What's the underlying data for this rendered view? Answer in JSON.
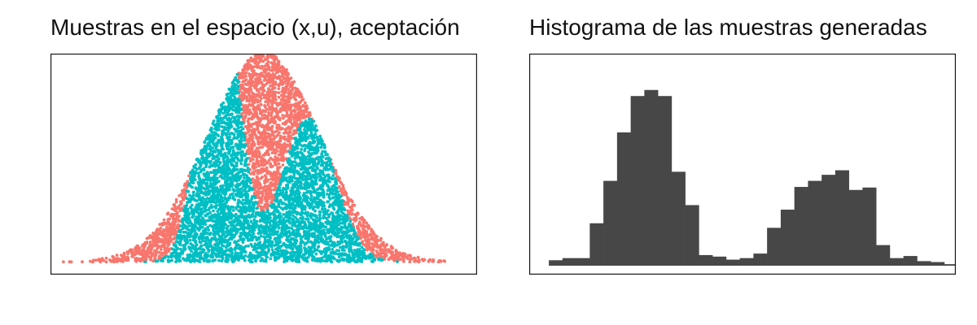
{
  "chart_data": [
    {
      "type": "scatter",
      "title": "Muestras en el espacio (x,u), aceptación",
      "xlabel": "",
      "ylabel": "",
      "axes_visible": false,
      "grid": false,
      "legend": "none",
      "xlim": [
        -4.7,
        6.7
      ],
      "ylim": [
        -0.02,
        0.33
      ],
      "series": [
        {
          "color": "#F8766D",
          "envelope": "1.25 * Normal(1.0, 1.5)",
          "points_description": "(x, u) pairs with u uniformly below the envelope density; rejected samples"
        },
        {
          "color": "#00BFC4",
          "target": "0.6 * Normal(-0.2, 0.5) + 0.4 * Normal(2.2, 0.7)",
          "points_description": "(x, u) pairs with u below the target density; accepted samples"
        }
      ]
    },
    {
      "type": "bar",
      "title": "Histograma de las muestras generadas",
      "xlabel": "",
      "ylabel": "",
      "axes_visible": false,
      "grid": false,
      "legend": "none",
      "bar_color": "#474747",
      "xlim": [
        -2.26,
        5.56
      ],
      "ylim": [
        0,
        0.7
      ],
      "bin_start": -1.9,
      "bin_width": 0.25,
      "values": [
        0.018,
        0.025,
        0.025,
        0.14,
        0.28,
        0.44,
        0.56,
        0.58,
        0.56,
        0.31,
        0.2,
        0.035,
        0.03,
        0.02,
        0.025,
        0.04,
        0.125,
        0.185,
        0.26,
        0.28,
        0.3,
        0.315,
        0.25,
        0.258,
        0.068,
        0.025,
        0.032,
        0.015,
        0.012,
        0.005
      ]
    }
  ]
}
